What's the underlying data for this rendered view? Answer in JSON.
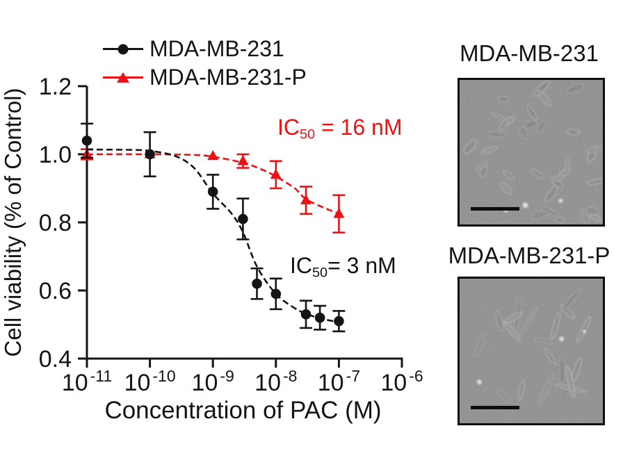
{
  "colors": {
    "black": "#141414",
    "red": "#ee1114",
    "axis": "#141414",
    "micro_bg": "#767676"
  },
  "legend": {
    "items": [
      {
        "label": "MDA-MB-231",
        "marker": "circle",
        "color": "#141414"
      },
      {
        "label": "MDA-MB-231-P",
        "marker": "triangle",
        "color": "#ee1114"
      }
    ]
  },
  "annotations": {
    "ic50_resistant": {
      "prefix": "IC",
      "sub": "50",
      "rest": " = 16 nM",
      "color": "#ee1114"
    },
    "ic50_parental": {
      "prefix": "IC",
      "sub": "50",
      "rest": "= 3 nM",
      "color": "#141414"
    }
  },
  "chart_data": {
    "type": "scatter",
    "x_scale": "log",
    "xlabel": "Concentration of PAC (M)",
    "ylabel": "Cell viability  (% of Control)",
    "x_tick_exponents": [
      -11,
      -10,
      -9,
      -8,
      -7,
      -6
    ],
    "y_ticks": [
      1.2,
      1.0,
      0.8,
      0.6,
      0.4
    ],
    "xlim_exponents": [
      -11,
      -6
    ],
    "ylim": [
      0.4,
      1.2
    ],
    "grid": false,
    "legend_position": "top-left",
    "series": [
      {
        "name": "MDA-MB-231-P",
        "color": "#ee1114",
        "marker": "triangle",
        "line_style": "dashed",
        "ic50": "16 nM",
        "x": [
          1e-11,
          1e-10,
          1e-09,
          3e-09,
          1e-08,
          3e-08,
          1e-07
        ],
        "y": [
          1.0,
          1.0,
          0.995,
          0.98,
          0.94,
          0.865,
          0.825
        ],
        "yerr": [
          0.015,
          0,
          0,
          0.02,
          0.04,
          0.04,
          0.055
        ],
        "fit_curve": {
          "log_x": [
            -11,
            -10,
            -9.3,
            -9,
            -8.52,
            -8.22,
            -8,
            -7.7,
            -7.52,
            -7.2,
            -7
          ],
          "y": [
            1.0,
            1.0,
            0.998,
            0.993,
            0.975,
            0.955,
            0.935,
            0.9,
            0.868,
            0.84,
            0.826
          ]
        }
      },
      {
        "name": "MDA-MB-231",
        "color": "#141414",
        "marker": "circle",
        "line_style": "dashed",
        "ic50": "3 nM",
        "x": [
          1e-11,
          1e-10,
          1e-09,
          3e-09,
          5e-09,
          1e-08,
          3e-08,
          5e-08,
          1e-07
        ],
        "y": [
          1.04,
          1.0,
          0.89,
          0.81,
          0.62,
          0.59,
          0.53,
          0.52,
          0.51
        ],
        "yerr": [
          0.05,
          0.065,
          0.05,
          0.06,
          0.045,
          0.045,
          0.04,
          0.035,
          0.03
        ],
        "fit_curve": {
          "log_x": [
            -11,
            -10.3,
            -10,
            -9.6,
            -9.3,
            -9,
            -8.7,
            -8.52,
            -8.3,
            -8,
            -7.7,
            -7.52,
            -7.3,
            -7
          ],
          "y": [
            1.014,
            1.013,
            1.01,
            0.995,
            0.96,
            0.885,
            0.825,
            0.77,
            0.67,
            0.59,
            0.548,
            0.532,
            0.518,
            0.507
          ]
        }
      }
    ]
  },
  "micrographs": [
    {
      "title": "MDA-MB-231",
      "scale_bar": true
    },
    {
      "title": "MDA-MB-231-P",
      "scale_bar": true
    }
  ]
}
